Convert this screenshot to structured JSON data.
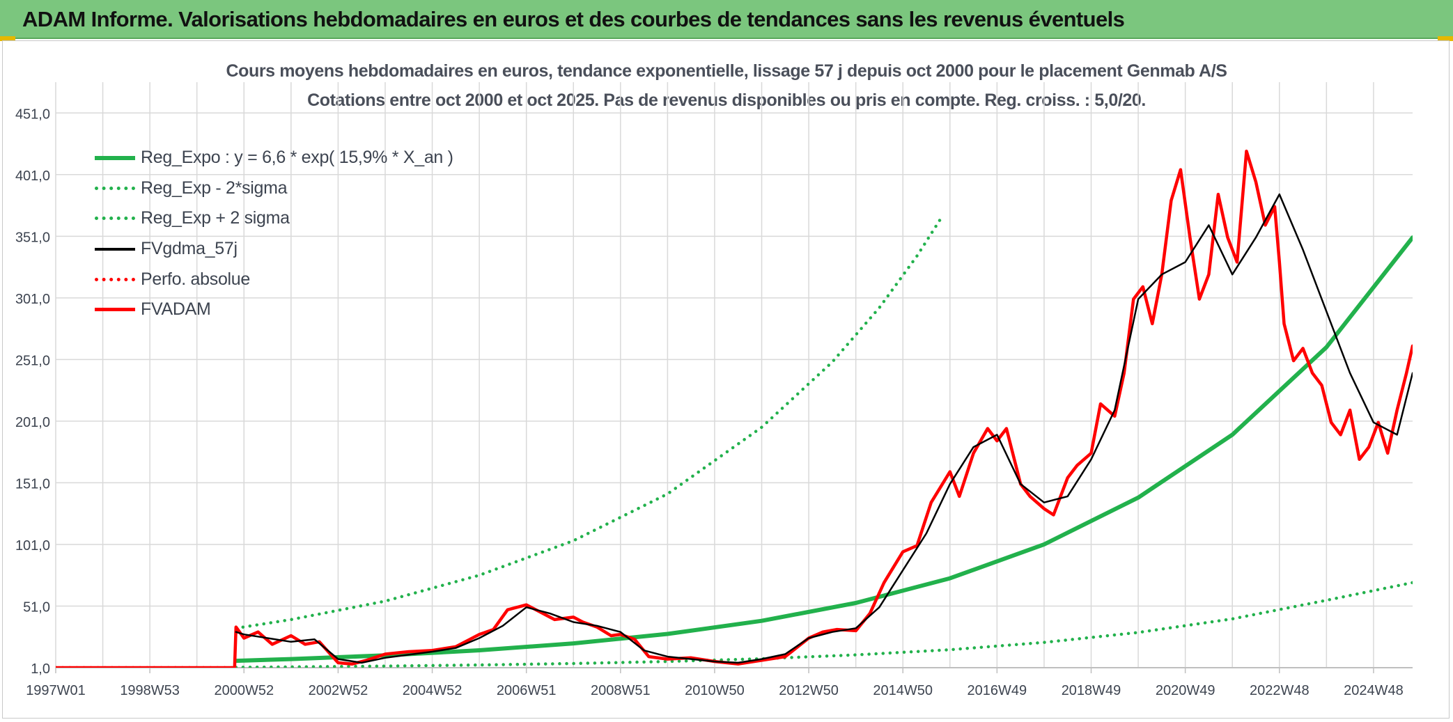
{
  "banner": {
    "title": "ADAM Informe. Valorisations hebdomadaires en euros et des courbes de tendances sans les revenus éventuels"
  },
  "chart_data": {
    "type": "line",
    "title": "Cours moyens hebdomadaires en euros, tendance exponentielle, lissage 57 j depuis oct 2000 pour le placement Genmab A/S",
    "subtitle": "Cotations entre oct 2000 et oct 2025. Pas de revenus disponibles ou pris en compte. Reg. croiss. : 5,0/20.",
    "xlabel": "",
    "ylabel": "",
    "ylim": [
      1,
      476
    ],
    "xlim": [
      1997.0,
      2025.83
    ],
    "x_ticks": [
      "1997W01",
      "1998W53",
      "2000W52",
      "2002W52",
      "2004W52",
      "2006W51",
      "2008W51",
      "2010W50",
      "2012W50",
      "2014W50",
      "2016W49",
      "2018W49",
      "2020W49",
      "2022W48",
      "2024W48"
    ],
    "x_tick_positions": [
      1997.0,
      1999.0,
      2001.0,
      2003.0,
      2005.0,
      2007.0,
      2009.0,
      2011.0,
      2013.0,
      2015.0,
      2017.0,
      2019.0,
      2021.0,
      2023.0,
      2025.0
    ],
    "y_ticks": [
      "1,0",
      "51,0",
      "101,0",
      "151,0",
      "201,0",
      "251,0",
      "301,0",
      "351,0",
      "401,0",
      "451,0"
    ],
    "y_tick_values": [
      1,
      51,
      101,
      151,
      201,
      251,
      301,
      351,
      401,
      451
    ],
    "grid": true,
    "legend_position": "top-left",
    "series": [
      {
        "name": "Reg_Expo : y = 6,6 * exp( 15,9% *  X_an )",
        "color": "#22b14c",
        "style": "solid-thick",
        "x": [
          2000.83,
          2002.0,
          2004.0,
          2006.0,
          2008.0,
          2010.0,
          2012.0,
          2014.0,
          2016.0,
          2018.0,
          2020.0,
          2022.0,
          2024.0,
          2025.83
        ],
        "y": [
          6.6,
          8.0,
          11.0,
          15.1,
          20.7,
          28.4,
          39.0,
          53.5,
          73.5,
          101.0,
          139.0,
          190.0,
          261.0,
          350.0
        ]
      },
      {
        "name": "Reg_Exp - 2*sigma",
        "color": "#22b14c",
        "style": "dotted",
        "x": [
          2000.83,
          2002.0,
          2004.0,
          2006.0,
          2008.0,
          2010.0,
          2012.0,
          2014.0,
          2016.0,
          2018.0,
          2020.0,
          2022.0,
          2024.0,
          2025.83
        ],
        "y": [
          1.3,
          1.6,
          2.3,
          3.2,
          4.4,
          6.0,
          8.3,
          11.4,
          15.6,
          21.5,
          29.6,
          40.6,
          55.7,
          70.0
        ]
      },
      {
        "name": "Reg_Exp + 2 sigma",
        "color": "#22b14c",
        "style": "dotted",
        "x": [
          2000.83,
          2002.0,
          2004.0,
          2006.0,
          2008.0,
          2010.0,
          2012.0,
          2013.5,
          2014.5,
          2015.3,
          2015.8
        ],
        "y": [
          33.0,
          40.0,
          55.0,
          76.0,
          104.0,
          142.0,
          196.0,
          249.0,
          293.0,
          335.0,
          365.0
        ]
      },
      {
        "name": "FVgdma_57j",
        "color": "#000000",
        "style": "solid",
        "x": [
          2000.83,
          2001.0,
          2001.5,
          2002.0,
          2002.5,
          2003.0,
          2003.5,
          2004.0,
          2005.0,
          2005.5,
          2006.0,
          2006.5,
          2007.0,
          2007.5,
          2008.0,
          2008.5,
          2009.0,
          2009.5,
          2010.0,
          2010.5,
          2011.0,
          2011.5,
          2012.0,
          2012.5,
          2013.0,
          2013.5,
          2014.0,
          2014.5,
          2015.0,
          2015.5,
          2016.0,
          2016.5,
          2017.0,
          2017.5,
          2018.0,
          2018.5,
          2019.0,
          2019.5,
          2020.0,
          2020.5,
          2021.0,
          2021.5,
          2022.0,
          2022.5,
          2023.0,
          2023.5,
          2024.0,
          2024.5,
          2025.0,
          2025.5,
          2025.83
        ],
        "y": [
          30,
          28,
          25,
          22,
          24,
          8,
          5,
          9,
          14,
          17,
          25,
          35,
          50,
          45,
          38,
          35,
          30,
          15,
          10,
          8,
          6,
          5,
          8,
          12,
          25,
          30,
          33,
          50,
          80,
          110,
          150,
          180,
          190,
          150,
          135,
          140,
          170,
          210,
          300,
          320,
          330,
          360,
          320,
          350,
          385,
          340,
          290,
          240,
          200,
          190,
          240
        ]
      },
      {
        "name": "Perfo. absolue",
        "color": "#ff0000",
        "style": "dotted",
        "x": [
          1997.0,
          2000.83
        ],
        "y": [
          1.0,
          1.0
        ]
      },
      {
        "name": "FVADAM",
        "color": "#ff0000",
        "style": "solid-thick",
        "x": [
          1997.0,
          2000.8,
          2000.83,
          2001.0,
          2001.3,
          2001.6,
          2002.0,
          2002.3,
          2002.6,
          2003.0,
          2003.3,
          2003.6,
          2004.0,
          2004.5,
          2005.0,
          2005.5,
          2006.0,
          2006.3,
          2006.6,
          2007.0,
          2007.3,
          2007.6,
          2008.0,
          2008.2,
          2008.5,
          2008.8,
          2009.0,
          2009.3,
          2009.6,
          2010.0,
          2010.5,
          2011.0,
          2011.5,
          2012.0,
          2012.5,
          2013.0,
          2013.3,
          2013.6,
          2014.0,
          2014.3,
          2014.6,
          2015.0,
          2015.3,
          2015.6,
          2016.0,
          2016.2,
          2016.5,
          2016.8,
          2017.0,
          2017.2,
          2017.5,
          2017.7,
          2018.0,
          2018.2,
          2018.5,
          2018.7,
          2019.0,
          2019.2,
          2019.5,
          2019.7,
          2019.9,
          2020.1,
          2020.3,
          2020.5,
          2020.7,
          2020.9,
          2021.1,
          2021.3,
          2021.5,
          2021.7,
          2021.9,
          2022.1,
          2022.3,
          2022.5,
          2022.7,
          2022.9,
          2023.0,
          2023.1,
          2023.3,
          2023.5,
          2023.7,
          2023.9,
          2024.1,
          2024.3,
          2024.5,
          2024.7,
          2024.9,
          2025.1,
          2025.3,
          2025.5,
          2025.7,
          2025.83
        ],
        "y": [
          1,
          1,
          34,
          25,
          30,
          20,
          27,
          20,
          22,
          5,
          4,
          7,
          12,
          14,
          15,
          18,
          28,
          32,
          48,
          52,
          46,
          40,
          42,
          38,
          34,
          27,
          28,
          24,
          10,
          8,
          9,
          6,
          4,
          7,
          10,
          25,
          30,
          32,
          31,
          45,
          70,
          95,
          100,
          135,
          160,
          140,
          175,
          195,
          185,
          195,
          150,
          140,
          130,
          125,
          155,
          165,
          175,
          215,
          205,
          240,
          300,
          310,
          280,
          320,
          380,
          405,
          350,
          300,
          320,
          385,
          350,
          330,
          420,
          395,
          360,
          375,
          330,
          280,
          250,
          260,
          240,
          230,
          200,
          190,
          210,
          170,
          180,
          200,
          175,
          210,
          240,
          262
        ]
      }
    ]
  }
}
